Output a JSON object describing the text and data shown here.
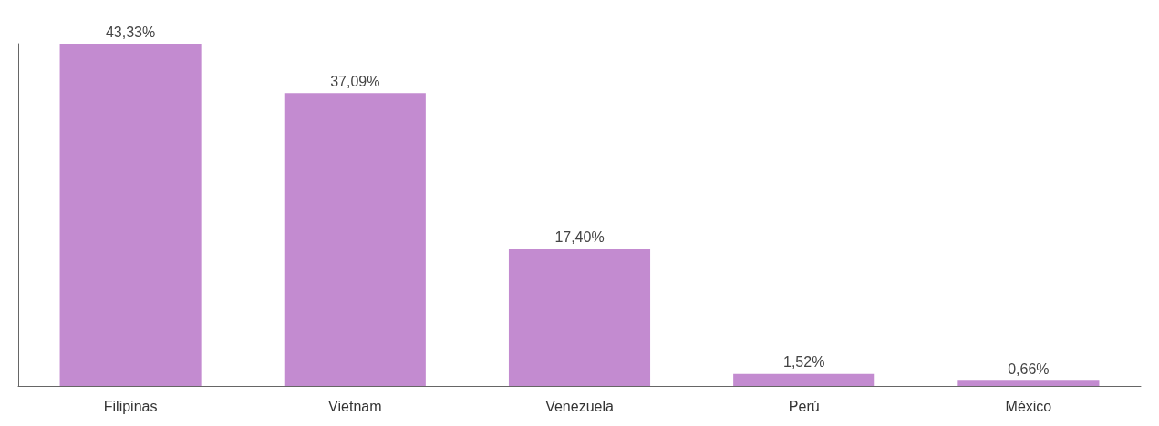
{
  "chart_data": {
    "type": "bar",
    "categories": [
      "Filipinas",
      "Vietnam",
      "Venezuela",
      "Perú",
      "México"
    ],
    "values": [
      43.33,
      37.09,
      17.4,
      1.52,
      0.66
    ],
    "value_labels": [
      "43,33%",
      "37,09%",
      "17,40%",
      "1,52%",
      "0,66%"
    ],
    "color": "#c38bd0",
    "grid": false
  }
}
